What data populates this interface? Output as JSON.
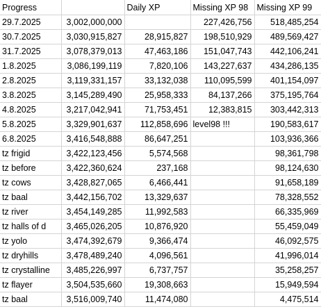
{
  "sheet": {
    "headers": [
      "Progress",
      "",
      "Daily XP",
      "Missing XP 98",
      "Missing XP 99"
    ],
    "rows": [
      [
        "29.7.2025",
        "3,002,000,000",
        "",
        "227,426,756",
        "518,485,254"
      ],
      [
        "30.7.2025",
        "3,030,915,827",
        "28,915,827",
        "198,510,929",
        "489,569,427"
      ],
      [
        "31.7.2025",
        "3,078,379,013",
        "47,463,186",
        "151,047,743",
        "442,106,241"
      ],
      [
        "1.8.2025",
        "3,086,199,119",
        "7,820,106",
        "143,227,637",
        "434,286,135"
      ],
      [
        "2.8.2025",
        "3,119,331,157",
        "33,132,038",
        "110,095,599",
        "401,154,097"
      ],
      [
        "3.8.2025",
        "3,145,289,490",
        "25,958,333",
        "84,137,266",
        "375,195,764"
      ],
      [
        "4.8.2025",
        "3,217,042,941",
        "71,753,451",
        "12,383,815",
        "303,442,313"
      ],
      [
        "5.8.2025",
        "3,329,901,637",
        "112,858,696",
        "level98 !!!",
        "190,583,617"
      ],
      [
        "6.8.2025",
        "3,416,548,888",
        "86,647,251",
        "",
        "103,936,366"
      ],
      [
        "tz frigid",
        "3,422,123,456",
        "5,574,568",
        "",
        "98,361,798"
      ],
      [
        "tz before",
        "3,422,360,624",
        "237,168",
        "",
        "98,124,630"
      ],
      [
        "tz cows",
        "3,428,827,065",
        "6,466,441",
        "",
        "91,658,189"
      ],
      [
        "tz baal",
        "3,442,156,702",
        "13,329,637",
        "",
        "78,328,552"
      ],
      [
        "tz river",
        "3,454,149,285",
        "11,992,583",
        "",
        "66,335,969"
      ],
      [
        "tz halls of d",
        "3,465,026,205",
        "10,876,920",
        "",
        "55,459,049"
      ],
      [
        "tz yolo",
        "3,474,392,679",
        "9,366,474",
        "",
        "46,092,575"
      ],
      [
        "tz dryhills",
        "3,478,489,240",
        "4,096,561",
        "",
        "41,996,014"
      ],
      [
        "tz crystalline",
        "3,485,226,997",
        "6,737,757",
        "",
        "35,258,257"
      ],
      [
        "tz flayer",
        "3,504,535,660",
        "19,308,663",
        "",
        "15,949,594"
      ],
      [
        "tz baal",
        "3,516,009,740",
        "11,474,080",
        "",
        "4,475,514"
      ]
    ]
  }
}
